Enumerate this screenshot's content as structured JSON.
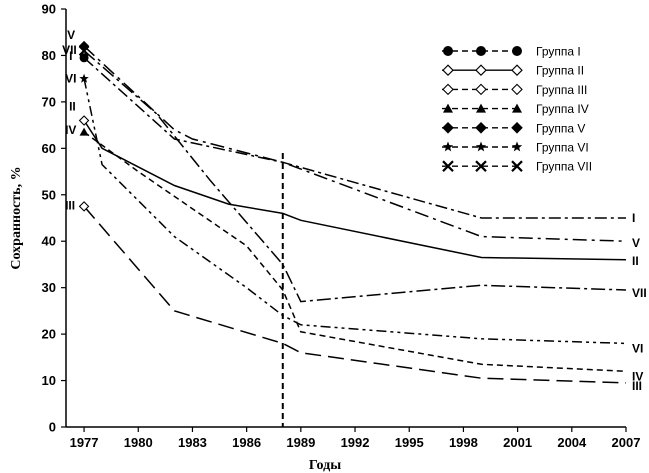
{
  "chart_data": {
    "type": "line",
    "xlabel": "Годы",
    "ylabel": "Сохранность, %",
    "xlim": [
      1976,
      2007
    ],
    "ylim": [
      0,
      90
    ],
    "x_ticks": [
      1977,
      1980,
      1983,
      1986,
      1989,
      1992,
      1995,
      1998,
      2001,
      2004,
      2007
    ],
    "y_ticks": [
      0,
      10,
      20,
      30,
      40,
      50,
      60,
      70,
      80,
      90
    ],
    "grid": false,
    "legend_position": "top-right",
    "reference_line": {
      "x": 1988
    },
    "series": [
      {
        "name": "Группа I",
        "end_label": "I",
        "start_label": "I",
        "marker": "circle",
        "x": [
          1977,
          1982,
          1988,
          1999,
          2007
        ],
        "y": [
          79.5,
          62,
          57,
          45,
          45
        ]
      },
      {
        "name": "Группа II",
        "end_label": "II",
        "start_label": "II",
        "marker": "diamond-open",
        "x": [
          1977,
          1978,
          1982,
          1985,
          1988,
          1989,
          1999,
          2007
        ],
        "y": [
          66,
          60,
          52,
          48,
          46,
          44.5,
          36.5,
          36
        ]
      },
      {
        "name": "Группа III",
        "end_label": "III",
        "start_label": "III",
        "marker": "diamond-open",
        "x": [
          1977,
          1982,
          1988,
          1989,
          1999,
          2007
        ],
        "y": [
          47.5,
          25,
          18,
          16,
          10.5,
          9.5
        ]
      },
      {
        "name": "Группа IV",
        "end_label": "IV",
        "start_label": "IV",
        "marker": "triangle",
        "x": [
          1977,
          1980,
          1986,
          1988,
          1989,
          1999,
          2007
        ],
        "y": [
          63.5,
          55,
          39,
          29.5,
          20.5,
          13.5,
          12
        ]
      },
      {
        "name": "Группа V",
        "end_label": "V",
        "start_label": "V",
        "marker": "diamond",
        "x": [
          1977,
          1982,
          1983,
          1988,
          1999,
          2007
        ],
        "y": [
          82,
          64,
          62,
          57,
          41,
          40
        ]
      },
      {
        "name": "Группа VI",
        "end_label": "VI",
        "start_label": "VI",
        "marker": "star",
        "x": [
          1977,
          1978,
          1982,
          1986,
          1988,
          1989,
          1999,
          2007
        ],
        "y": [
          75,
          56.5,
          41,
          30,
          24,
          22,
          19,
          18
        ]
      },
      {
        "name": "Группа VII",
        "end_label": "VII",
        "start_label": "VII",
        "marker": "x",
        "x": [
          1977,
          1981,
          1984,
          1988,
          1989,
          1999,
          2007
        ],
        "y": [
          81,
          67.5,
          53,
          35,
          27,
          30.5,
          29.5
        ]
      }
    ]
  }
}
